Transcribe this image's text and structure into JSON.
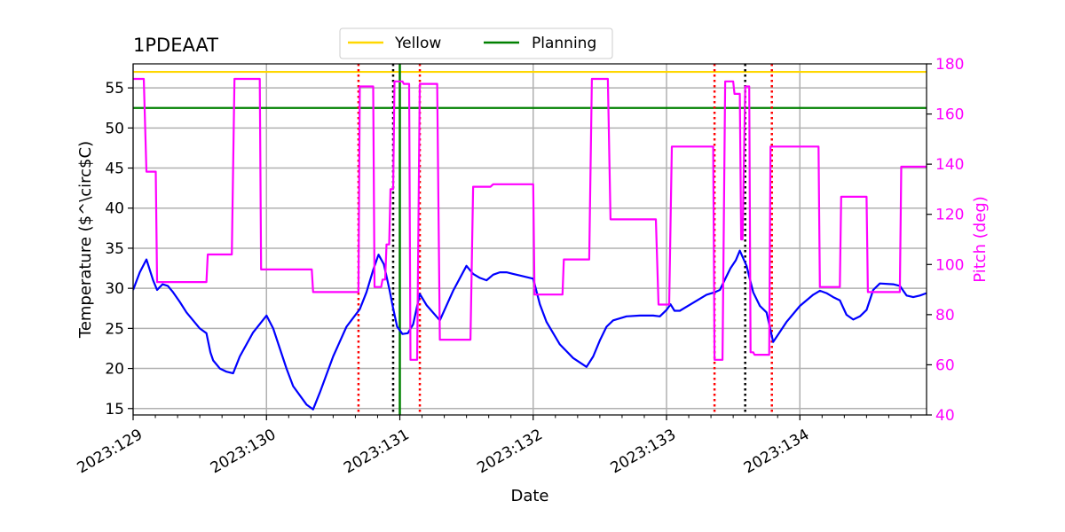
{
  "chart_data": {
    "type": "line",
    "title": "1PDEAAT",
    "xlabel": "Date",
    "ylabel": "Temperature ($^\\circ$C)",
    "ylabel_display": "Temperature ($^\\circ$C)",
    "y2label": "Pitch (deg)",
    "xlim": [
      129.0,
      134.95
    ],
    "ylim": [
      14.2,
      58.0
    ],
    "y2lim": [
      40,
      180
    ],
    "xticks": [
      {
        "value": 129,
        "label": "2023:129"
      },
      {
        "value": 130,
        "label": "2023:130"
      },
      {
        "value": 131,
        "label": "2023:131"
      },
      {
        "value": 132,
        "label": "2023:132"
      },
      {
        "value": 133,
        "label": "2023:133"
      },
      {
        "value": 134,
        "label": "2023:134"
      }
    ],
    "yticks": [
      15,
      20,
      25,
      30,
      35,
      40,
      45,
      50,
      55
    ],
    "y2ticks": [
      40,
      60,
      80,
      100,
      120,
      140,
      160,
      180
    ],
    "grid": true,
    "legend": {
      "placement": "top-center",
      "entries": [
        {
          "name": "Yellow",
          "color": "#ffd700"
        },
        {
          "name": "Planning",
          "color": "#008000"
        }
      ]
    },
    "limits": {
      "yellow": 57.0,
      "planning": 52.5
    },
    "colors": {
      "temperature": "#0000ff",
      "pitch": "#ff00ff",
      "yellow": "#ffd700",
      "planning": "#008000",
      "red_marker": "#ff0000",
      "black_marker": "#000000",
      "axis_right": "#ff00ff"
    },
    "red_dotted_x": [
      130.69,
      131.15,
      133.36,
      133.79
    ],
    "black_dotted_x": [
      130.95,
      133.59
    ],
    "green_vertical_x": [
      131.0
    ],
    "series": [
      {
        "name": "temperature",
        "axis": "left",
        "x": [
          129.0,
          129.05,
          129.1,
          129.15,
          129.18,
          129.22,
          129.26,
          129.3,
          129.35,
          129.4,
          129.5,
          129.55,
          129.58,
          129.6,
          129.65,
          129.7,
          129.75,
          129.8,
          129.9,
          130.0,
          130.05,
          130.1,
          130.15,
          130.2,
          130.3,
          130.35,
          130.4,
          130.5,
          130.6,
          130.7,
          130.75,
          130.8,
          130.84,
          130.88,
          130.92,
          130.95,
          130.98,
          131.02,
          131.06,
          131.1,
          131.15,
          131.2,
          131.3,
          131.4,
          131.5,
          131.55,
          131.6,
          131.65,
          131.7,
          131.75,
          131.8,
          131.85,
          131.9,
          132.0,
          132.05,
          132.1,
          132.2,
          132.3,
          132.4,
          132.45,
          132.5,
          132.55,
          132.6,
          132.7,
          132.8,
          132.9,
          132.95,
          133.0,
          133.03,
          133.06,
          133.1,
          133.2,
          133.3,
          133.36,
          133.4,
          133.45,
          133.48,
          133.52,
          133.55,
          133.6,
          133.65,
          133.7,
          133.75,
          133.8,
          133.9,
          134.0,
          134.1,
          134.15,
          134.2,
          134.25,
          134.3,
          134.35,
          134.4,
          134.45,
          134.5,
          134.55,
          134.6,
          134.7,
          134.75,
          134.8,
          134.85,
          134.9,
          134.95
        ],
        "y": [
          29.8,
          32.0,
          33.6,
          31.0,
          29.8,
          30.5,
          30.3,
          29.5,
          28.3,
          27.0,
          25.0,
          24.4,
          22.0,
          21.0,
          20.0,
          19.6,
          19.4,
          21.5,
          24.5,
          26.6,
          25.0,
          22.5,
          20.0,
          17.8,
          15.5,
          14.9,
          17.0,
          21.5,
          25.2,
          27.4,
          29.5,
          32.3,
          34.2,
          33.0,
          30.0,
          27.5,
          25.2,
          24.3,
          24.4,
          25.5,
          29.3,
          27.9,
          26.0,
          29.7,
          32.8,
          31.8,
          31.3,
          31.0,
          31.7,
          32.0,
          32.0,
          31.8,
          31.6,
          31.2,
          28.0,
          25.8,
          23.0,
          21.3,
          20.2,
          21.5,
          23.5,
          25.2,
          26.0,
          26.5,
          26.6,
          26.6,
          26.5,
          27.3,
          28.0,
          27.2,
          27.2,
          28.2,
          29.2,
          29.5,
          29.8,
          31.5,
          32.5,
          33.5,
          34.7,
          32.8,
          29.5,
          27.8,
          27.0,
          23.3,
          25.8,
          27.8,
          29.2,
          29.7,
          29.4,
          28.9,
          28.5,
          26.7,
          26.1,
          26.5,
          27.3,
          29.8,
          30.6,
          30.5,
          30.3,
          29.1,
          28.9,
          29.1,
          29.4
        ]
      },
      {
        "name": "pitch",
        "axis": "right",
        "x": [
          129.0,
          129.08,
          129.1,
          129.17,
          129.18,
          129.2,
          129.55,
          129.56,
          129.74,
          129.76,
          129.95,
          129.96,
          130.34,
          130.35,
          130.69,
          130.7,
          130.8,
          130.81,
          130.86,
          130.87,
          130.89,
          130.9,
          130.92,
          130.93,
          130.95,
          130.96,
          131.02,
          131.03,
          131.07,
          131.08,
          131.13,
          131.15,
          131.28,
          131.3,
          131.53,
          131.55,
          131.68,
          131.7,
          132.0,
          132.01,
          132.22,
          132.23,
          132.42,
          132.44,
          132.56,
          132.58,
          132.92,
          132.94,
          133.02,
          133.04,
          133.35,
          133.36,
          133.42,
          133.44,
          133.5,
          133.51,
          133.55,
          133.56,
          133.57,
          133.59,
          133.62,
          133.63,
          133.65,
          133.66,
          133.77,
          133.78,
          134.14,
          134.15,
          134.3,
          134.31,
          134.5,
          134.51,
          134.75,
          134.76,
          134.95
        ],
        "y": [
          174,
          174,
          137,
          137,
          93,
          93,
          93,
          104,
          104,
          174,
          174,
          98,
          98,
          89,
          89,
          171,
          171,
          91,
          91,
          94,
          94,
          108,
          108,
          130,
          130,
          173,
          173,
          172,
          172,
          62,
          62,
          172,
          172,
          70,
          70,
          131,
          131,
          132,
          132,
          88,
          88,
          102,
          102,
          174,
          174,
          118,
          118,
          84,
          84,
          147,
          147,
          62,
          62,
          173,
          173,
          168,
          168,
          110,
          110,
          171,
          171,
          65,
          65,
          64,
          64,
          147,
          147,
          91,
          91,
          127,
          127,
          89,
          89,
          139,
          139
        ]
      }
    ]
  }
}
